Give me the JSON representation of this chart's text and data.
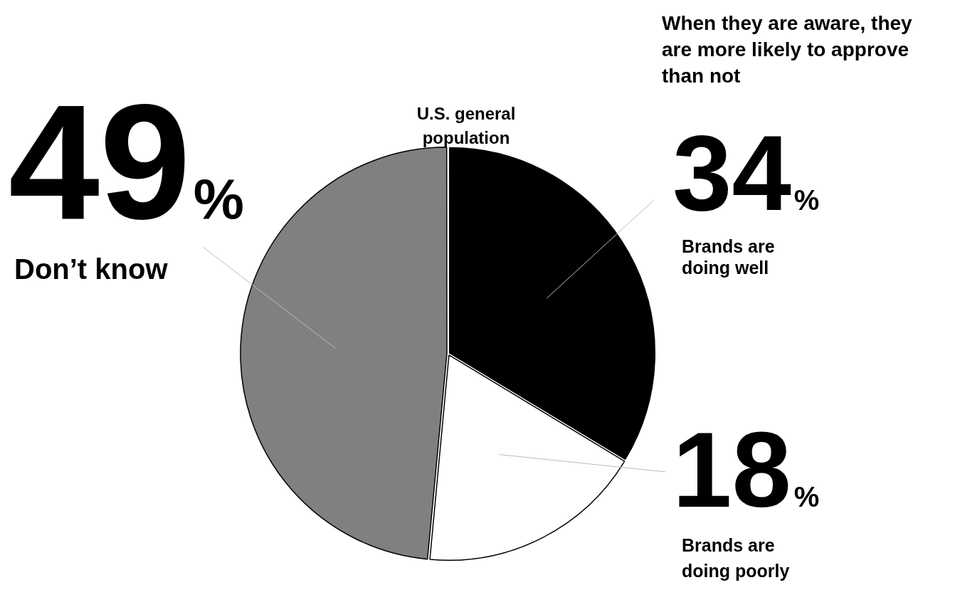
{
  "chart_data": {
    "type": "pie",
    "title": "U.S. general population",
    "categories": [
      "Brands are doing well",
      "Brands are doing poorly",
      "Don’t know"
    ],
    "values": [
      34,
      18,
      49
    ],
    "colors": [
      "#000000",
      "#ffffff",
      "#808080"
    ],
    "value_labels": [
      "34%",
      "18%",
      "49%"
    ],
    "annotations": [
      "When they are aware, they are more likely to approve than not"
    ],
    "legend": false
  }
}
